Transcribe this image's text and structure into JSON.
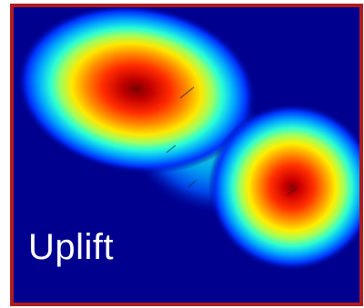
{
  "title": "Uplift",
  "colors": {
    "border": "#b01c1c",
    "background": "#00008f",
    "label_text": "#ffffff",
    "colormap": "jet"
  },
  "heatmap": {
    "colormap": "jet",
    "hotspot_count": 2
  }
}
